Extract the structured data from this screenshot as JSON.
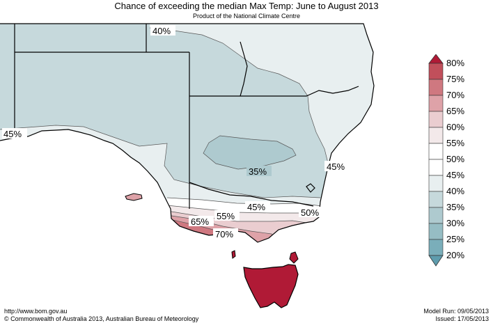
{
  "title": "Chance of exceeding the median Max Temp: June to August 2013",
  "subtitle": "Product of the National Climate Centre",
  "footer": {
    "url": "http://www.bom.gov.au",
    "copyright": "©  Commonwealth of Australia 2013, Australian Bureau of Meteorology",
    "model_run": "Model Run: 09/05/2013",
    "issued": "Issued: 17/05/2013"
  },
  "colors": {
    "c20": "#5e9cad",
    "c25": "#7aaeba",
    "c30": "#96bdc4",
    "c35": "#aecacf",
    "c40": "#c6d9dc",
    "c45": "#e8eff0",
    "c50": "#ffffff",
    "c55": "#f3e9ea",
    "c60": "#eacdd0",
    "c65": "#dea2a8",
    "c70": "#cf7880",
    "c75": "#c14f5b",
    "c80": "#b01a36"
  },
  "legend": {
    "labels": [
      "80%",
      "75%",
      "70%",
      "65%",
      "60%",
      "55%",
      "50%",
      "45%",
      "40%",
      "35%",
      "30%",
      "25%",
      "20%"
    ]
  },
  "contour_labels": [
    "40%",
    "45%",
    "35%",
    "45%",
    "45%",
    "50%",
    "55%",
    "65%",
    "70%"
  ]
}
